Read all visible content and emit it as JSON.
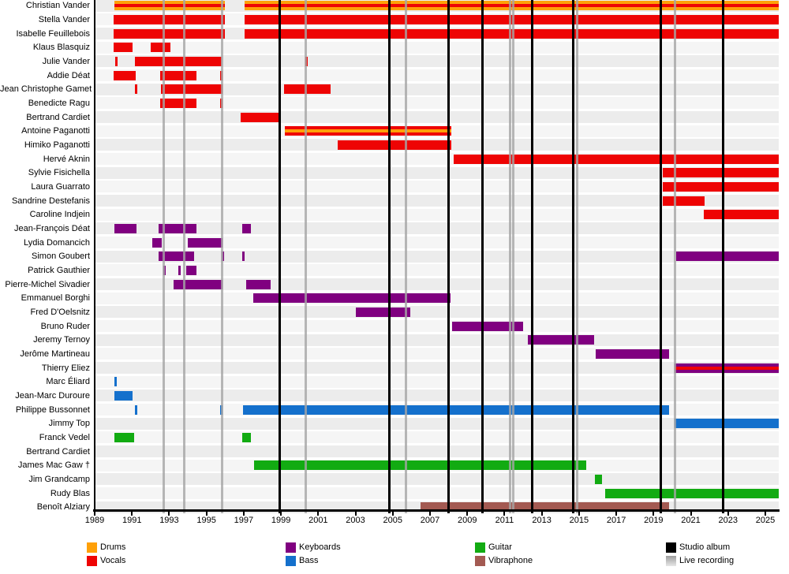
{
  "chart_data": {
    "type": "timeline",
    "description": "Band members timeline, colored bars by instrument, vertical lines for releases",
    "x_axis": {
      "start_year": 1989,
      "end_year": 2025.72,
      "tick_years": [
        1989,
        1991,
        1993,
        1995,
        1997,
        1999,
        2001,
        2003,
        2005,
        2007,
        2009,
        2011,
        2013,
        2015,
        2017,
        2019,
        2021,
        2023,
        2025
      ]
    },
    "colors": {
      "drums": "#ffa008",
      "vocals": "#ee0404",
      "keyboards": "#800080",
      "bass": "#1470cc",
      "guitar": "#12ab12",
      "vibraphone": "#a35a52",
      "studio_album": "#000000",
      "live_recording": "#b5b5b5",
      "band_odd": "#ececec",
      "band_even": "#f5f5f5"
    },
    "legend": [
      {
        "label": "Drums",
        "key": "drums"
      },
      {
        "label": "Vocals",
        "key": "vocals"
      },
      {
        "label": "Keyboards",
        "key": "keyboards"
      },
      {
        "label": "Bass",
        "key": "bass"
      },
      {
        "label": "Guitar",
        "key": "guitar"
      },
      {
        "label": "Vibraphone",
        "key": "vibraphone"
      },
      {
        "label": "Studio album",
        "key": "studio_album"
      },
      {
        "label": "Live recording",
        "key": "live_recording"
      }
    ],
    "studio_album_years": [
      1998.95,
      2004.8,
      2008.0,
      2009.8,
      2012.5,
      2014.7,
      2019.4,
      2022.75
    ],
    "live_recording_years": [
      1992.7,
      1993.8,
      1995.85,
      2000.35,
      2005.7,
      2011.3,
      2011.48,
      2014.9,
      2020.15
    ],
    "members": [
      {
        "name": "Christian Vander",
        "instrument": "drums",
        "stripe": "vocals",
        "segments": [
          [
            1990.05,
            1996.0
          ],
          [
            1997.05,
            2025.72
          ]
        ]
      },
      {
        "name": "Stella Vander",
        "instrument": "vocals",
        "segments": [
          [
            1990.0,
            1996.0
          ],
          [
            1997.05,
            2025.72
          ]
        ]
      },
      {
        "name": "Isabelle Feuillebois",
        "instrument": "vocals",
        "segments": [
          [
            1990.0,
            1996.0
          ],
          [
            1997.05,
            2025.72
          ]
        ]
      },
      {
        "name": "Klaus Blasquiz",
        "instrument": "vocals",
        "segments": [
          [
            1990.0,
            1991.05
          ],
          [
            1992.0,
            1993.05
          ]
        ]
      },
      {
        "name": "Julie Vander",
        "instrument": "vocals",
        "segments": [
          [
            1990.1,
            1990.22
          ],
          [
            1991.15,
            1995.8
          ],
          [
            2000.3,
            2000.42
          ]
        ]
      },
      {
        "name": "Addie Déat",
        "instrument": "vocals",
        "segments": [
          [
            1990.0,
            1991.2
          ],
          [
            1992.5,
            1994.45
          ],
          [
            1995.75,
            1995.87
          ]
        ]
      },
      {
        "name": "Jean Christophe Gamet",
        "instrument": "vocals",
        "segments": [
          [
            1991.15,
            1991.27
          ],
          [
            1992.55,
            1995.85
          ],
          [
            1999.15,
            2001.65
          ]
        ]
      },
      {
        "name": "Benedicte Ragu",
        "instrument": "vocals",
        "segments": [
          [
            1992.5,
            1994.45
          ],
          [
            1995.75,
            1995.87
          ]
        ]
      },
      {
        "name": "Bertrand Cardiet",
        "instrument": "vocals",
        "segments": [
          [
            1996.85,
            1998.9
          ]
        ]
      },
      {
        "name": "Antoine Paganotti",
        "instrument": "vocals",
        "stripe": "drums",
        "segments": [
          [
            1999.2,
            2008.15
          ]
        ]
      },
      {
        "name": "Himiko Paganotti",
        "instrument": "vocals",
        "segments": [
          [
            2002.05,
            2008.15
          ]
        ]
      },
      {
        "name": "Hervé Aknin",
        "instrument": "vocals",
        "segments": [
          [
            2008.25,
            2025.72
          ]
        ]
      },
      {
        "name": "Sylvie Fisichella",
        "instrument": "vocals",
        "segments": [
          [
            2019.5,
            2025.72
          ]
        ]
      },
      {
        "name": "Laura Guarrato",
        "instrument": "vocals",
        "segments": [
          [
            2019.5,
            2025.72
          ]
        ]
      },
      {
        "name": "Sandrine Destefanis",
        "instrument": "vocals",
        "segments": [
          [
            2019.5,
            2021.75
          ]
        ]
      },
      {
        "name": "Caroline Indjein",
        "instrument": "vocals",
        "segments": [
          [
            2021.7,
            2025.72
          ]
        ]
      },
      {
        "name": "Jean-François Déat",
        "instrument": "keyboards",
        "segments": [
          [
            1990.05,
            1991.25
          ],
          [
            1992.45,
            1994.45
          ],
          [
            1996.9,
            1997.4
          ]
        ]
      },
      {
        "name": "Lydia Domancich",
        "instrument": "keyboards",
        "segments": [
          [
            1992.1,
            1992.6
          ],
          [
            1994.0,
            1995.85
          ]
        ]
      },
      {
        "name": "Simon Goubert",
        "instrument": "keyboards",
        "segments": [
          [
            1992.45,
            1994.35
          ],
          [
            1995.8,
            1995.92
          ],
          [
            1996.9,
            1997.02
          ],
          [
            2020.2,
            2025.72
          ]
        ]
      },
      {
        "name": "Patrick Gauthier",
        "instrument": "keyboards",
        "segments": [
          [
            1992.7,
            1992.82
          ],
          [
            1993.5,
            1993.62
          ],
          [
            1993.9,
            1994.45
          ]
        ]
      },
      {
        "name": "Pierre-Michel Sivadier",
        "instrument": "keyboards",
        "segments": [
          [
            1993.25,
            1995.85
          ],
          [
            1997.15,
            1998.45
          ]
        ]
      },
      {
        "name": "Emmanuel Borghi",
        "instrument": "keyboards",
        "segments": [
          [
            1997.5,
            2008.1
          ]
        ]
      },
      {
        "name": "Fred D'Oelsnitz",
        "instrument": "keyboards",
        "segments": [
          [
            2003.0,
            2005.95
          ]
        ]
      },
      {
        "name": "Bruno Ruder",
        "instrument": "keyboards",
        "segments": [
          [
            2008.2,
            2012.0
          ]
        ]
      },
      {
        "name": "Jeremy Ternoy",
        "instrument": "keyboards",
        "segments": [
          [
            2012.25,
            2015.8
          ]
        ]
      },
      {
        "name": "Jerôme Martineau",
        "instrument": "keyboards",
        "segments": [
          [
            2015.9,
            2019.85
          ]
        ]
      },
      {
        "name": "Thierry Eliez",
        "instrument": "keyboards",
        "stripe": "vocals",
        "segments": [
          [
            2020.15,
            2025.72
          ]
        ]
      },
      {
        "name": "Marc Éliard",
        "instrument": "bass",
        "segments": [
          [
            1990.05,
            1990.2
          ]
        ]
      },
      {
        "name": "Jean-Marc Duroure",
        "instrument": "bass",
        "segments": [
          [
            1990.05,
            1991.05
          ]
        ]
      },
      {
        "name": "Philippe Bussonnet",
        "instrument": "bass",
        "segments": [
          [
            1991.15,
            1991.28
          ],
          [
            1995.75,
            1995.87
          ],
          [
            1996.95,
            2019.85
          ]
        ]
      },
      {
        "name": "Jimmy Top",
        "instrument": "bass",
        "segments": [
          [
            2020.15,
            2025.72
          ]
        ]
      },
      {
        "name": "Franck Vedel",
        "instrument": "guitar",
        "segments": [
          [
            1990.05,
            1991.1
          ],
          [
            1996.9,
            1997.4
          ]
        ]
      },
      {
        "name": "Bertrand Cardiet",
        "instrument": "guitar",
        "segments": []
      },
      {
        "name": "James Mac Gaw †",
        "instrument": "guitar",
        "segments": [
          [
            1997.55,
            2015.4
          ]
        ]
      },
      {
        "name": "Jim Grandcamp",
        "instrument": "guitar",
        "segments": [
          [
            2015.85,
            2016.25
          ]
        ]
      },
      {
        "name": "Rudy Blas",
        "instrument": "guitar",
        "segments": [
          [
            2016.4,
            2025.72
          ]
        ]
      },
      {
        "name": "Benoît Alziary",
        "instrument": "vibraphone",
        "segments": [
          [
            2006.5,
            2019.85
          ]
        ]
      }
    ]
  }
}
